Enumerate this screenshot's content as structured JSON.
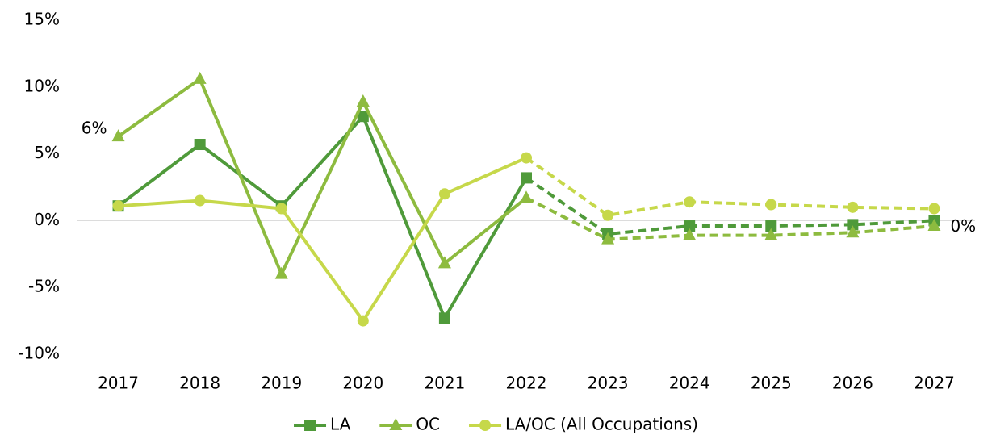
{
  "chart_data": {
    "type": "line",
    "categories": [
      "2017",
      "2018",
      "2019",
      "2020",
      "2021",
      "2022",
      "2023",
      "2024",
      "2025",
      "2026",
      "2027"
    ],
    "series": [
      {
        "name": "LA",
        "color": "#4f9a3a",
        "marker": "square",
        "values": [
          1.1,
          5.7,
          1.1,
          7.8,
          -7.3,
          3.2,
          -1.0,
          -0.4,
          -0.4,
          -0.3,
          0.0
        ],
        "value_labels": [
          null,
          null,
          null,
          null,
          null,
          null,
          null,
          null,
          null,
          null,
          "0%"
        ]
      },
      {
        "name": "OC",
        "color": "#8dbb3f",
        "marker": "triangle",
        "values": [
          6.3,
          10.6,
          -4.0,
          8.9,
          -3.2,
          1.7,
          -1.4,
          -1.1,
          -1.1,
          -0.9,
          -0.4
        ],
        "value_labels": [
          "6%",
          null,
          null,
          null,
          null,
          null,
          null,
          null,
          null,
          null,
          null
        ]
      },
      {
        "name": "LA/OC (All Occupations)",
        "color": "#c6d84a",
        "marker": "circle",
        "values": [
          1.1,
          1.5,
          0.9,
          -7.5,
          2.0,
          4.7,
          0.4,
          1.4,
          1.2,
          1.0,
          0.9
        ],
        "value_labels": [
          null,
          null,
          null,
          null,
          null,
          null,
          null,
          null,
          null,
          null,
          null
        ]
      }
    ],
    "dashed_from": "2022",
    "ylim": [
      -10,
      15
    ],
    "yticks": [
      {
        "value": -10,
        "label": "-10%"
      },
      {
        "value": -5,
        "label": "-5%"
      },
      {
        "value": 0,
        "label": "0%"
      },
      {
        "value": 5,
        "label": "5%"
      },
      {
        "value": 10,
        "label": "10%"
      },
      {
        "value": 15,
        "label": "15%"
      }
    ],
    "grid": false,
    "legend": "bottom"
  }
}
